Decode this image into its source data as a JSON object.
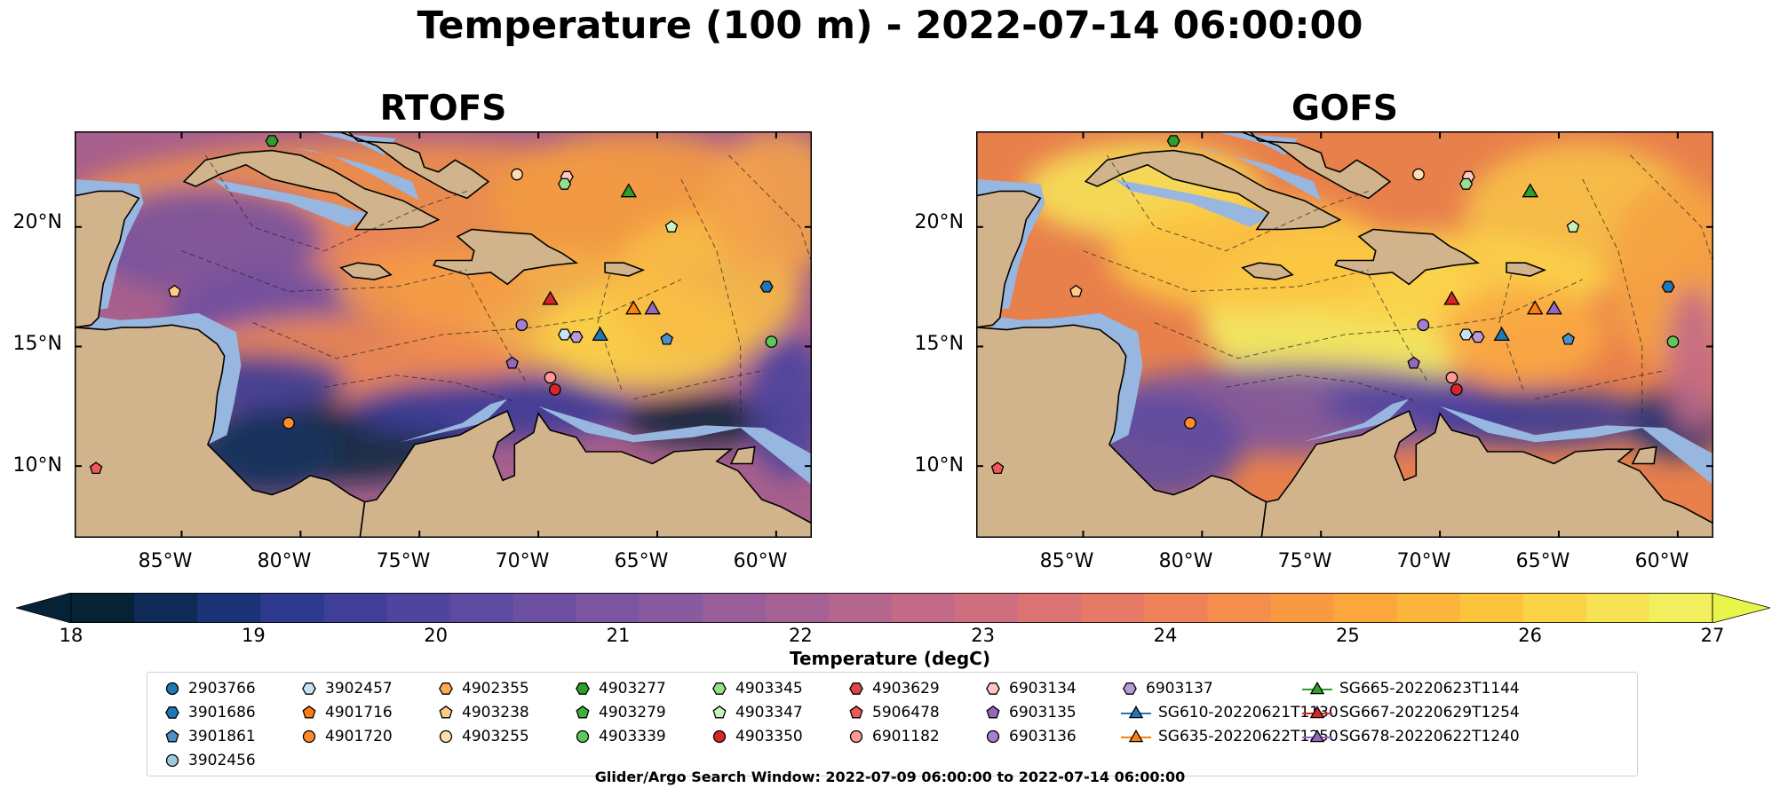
{
  "title": "Temperature (100 m) - 2022-07-14 06:00:00",
  "panels": [
    {
      "title": "RTOFS",
      "scheme": "rtofs"
    },
    {
      "title": "GOFS",
      "scheme": "gofs"
    }
  ],
  "axes": {
    "lat_ticks": [
      "20°N",
      "15°N",
      "10°N"
    ],
    "lon_ticks": [
      "85°W",
      "80°W",
      "75°W",
      "70°W",
      "65°W",
      "60°W"
    ],
    "lat_range": [
      7,
      24
    ],
    "lon_range": [
      -89.5,
      -58.5
    ]
  },
  "colorbar": {
    "ticks": [
      "18",
      "19",
      "20",
      "21",
      "22",
      "23",
      "24",
      "25",
      "26",
      "27"
    ],
    "label": "Temperature (degC)",
    "range": [
      18,
      27
    ],
    "colors": [
      "#062336",
      "#0f2a55",
      "#1d3377",
      "#2e3a8f",
      "#3f3e99",
      "#4f449e",
      "#5e4aa0",
      "#6d50a1",
      "#7b55a0",
      "#8a5a9e",
      "#995e9a",
      "#a76295",
      "#b5668f",
      "#c26a87",
      "#cf6e7e",
      "#db7373",
      "#e67a66",
      "#ef8259",
      "#f58d4d",
      "#f99a43",
      "#fba73c",
      "#fcb53a",
      "#fcc43d",
      "#fad346",
      "#f6e252",
      "#f1ef5e"
    ]
  },
  "legend": [
    {
      "label": "2903766",
      "shape": "circle",
      "color": "#1f77b4"
    },
    {
      "label": "3901686",
      "shape": "hexagon",
      "color": "#1f77b4"
    },
    {
      "label": "3901861",
      "shape": "pentagon",
      "color": "#4a90c8"
    },
    {
      "label": "3902456",
      "shape": "circle",
      "color": "#9ecae1"
    },
    {
      "label": "3902457",
      "shape": "hexagon",
      "color": "#c6e2f5"
    },
    {
      "label": "4901716",
      "shape": "pentagon",
      "color": "#ff7f0e"
    },
    {
      "label": "4901720",
      "shape": "circle",
      "color": "#ff8c2a"
    },
    {
      "label": "4902355",
      "shape": "hexagon",
      "color": "#ffaa55"
    },
    {
      "label": "4903238",
      "shape": "pentagon",
      "color": "#ffcc88"
    },
    {
      "label": "4903255",
      "shape": "circle",
      "color": "#ffdcb0"
    },
    {
      "label": "4903277",
      "shape": "hexagon",
      "color": "#2ca02c"
    },
    {
      "label": "4903279",
      "shape": "pentagon",
      "color": "#3cb33c"
    },
    {
      "label": "4903339",
      "shape": "circle",
      "color": "#5cc85c"
    },
    {
      "label": "4903345",
      "shape": "hexagon",
      "color": "#98df8a"
    },
    {
      "label": "4903347",
      "shape": "pentagon",
      "color": "#c7f2bd"
    },
    {
      "label": "4903350",
      "shape": "circle",
      "color": "#d62728"
    },
    {
      "label": "4903629",
      "shape": "hexagon",
      "color": "#e34446"
    },
    {
      "label": "5906478",
      "shape": "pentagon",
      "color": "#f0595b"
    },
    {
      "label": "6901182",
      "shape": "circle",
      "color": "#ff9896"
    },
    {
      "label": "6903134",
      "shape": "hexagon",
      "color": "#ffc6c4"
    },
    {
      "label": "6903135",
      "shape": "pentagon",
      "color": "#9467bd"
    },
    {
      "label": "6903136",
      "shape": "circle",
      "color": "#a57fcd"
    },
    {
      "label": "6903137",
      "shape": "hexagon",
      "color": "#b99ad8"
    },
    {
      "label": "SG610-20220621T1130",
      "shape": "triangle-line",
      "color": "#1f77b4"
    },
    {
      "label": "SG635-20220622T1250",
      "shape": "triangle-line",
      "color": "#ff7f0e"
    },
    {
      "label": "SG665-20220623T1144",
      "shape": "triangle-line",
      "color": "#2ca02c"
    },
    {
      "label": "SG667-20220629T1254",
      "shape": "triangle-line",
      "color": "#d62728"
    },
    {
      "label": "SG678-20220622T1240",
      "shape": "triangle-line",
      "color": "#9467bd"
    }
  ],
  "markers": [
    {
      "id": "4903277",
      "lon": -81.2,
      "lat": 23.6
    },
    {
      "id": "4903255",
      "lon": -70.9,
      "lat": 22.2
    },
    {
      "id": "6903134",
      "lon": -68.8,
      "lat": 22.1
    },
    {
      "id": "4903345",
      "lon": -68.9,
      "lat": 21.8
    },
    {
      "id": "SG665-20220623T1144",
      "lon": -66.2,
      "lat": 21.5
    },
    {
      "id": "4903347",
      "lon": -64.4,
      "lat": 20.0
    },
    {
      "id": "4903238",
      "lon": -85.3,
      "lat": 17.3
    },
    {
      "id": "3901686",
      "lon": -60.4,
      "lat": 17.5
    },
    {
      "id": "SG667-20220629T1254",
      "lon": -69.5,
      "lat": 17.0
    },
    {
      "id": "SG635-20220622T1250",
      "lon": -66.0,
      "lat": 16.6
    },
    {
      "id": "SG678-20220622T1240",
      "lon": -65.2,
      "lat": 16.6
    },
    {
      "id": "6903136",
      "lon": -70.7,
      "lat": 15.9
    },
    {
      "id": "3902457",
      "lon": -68.9,
      "lat": 15.5
    },
    {
      "id": "6903137",
      "lon": -68.4,
      "lat": 15.4
    },
    {
      "id": "SG610-20220621T1130",
      "lon": -67.4,
      "lat": 15.5
    },
    {
      "id": "3901861",
      "lon": -64.6,
      "lat": 15.3
    },
    {
      "id": "4903339",
      "lon": -60.2,
      "lat": 15.2
    },
    {
      "id": "6903135",
      "lon": -71.1,
      "lat": 14.3
    },
    {
      "id": "6901182",
      "lon": -69.5,
      "lat": 13.7
    },
    {
      "id": "4903350",
      "lon": -69.3,
      "lat": 13.2
    },
    {
      "id": "4901720",
      "lon": -80.5,
      "lat": 11.8
    },
    {
      "id": "5906478",
      "lon": -88.6,
      "lat": 9.9
    }
  ],
  "search_window": "Glider/Argo Search Window: 2022-07-09 06:00:00 to 2022-07-14 06:00:00"
}
